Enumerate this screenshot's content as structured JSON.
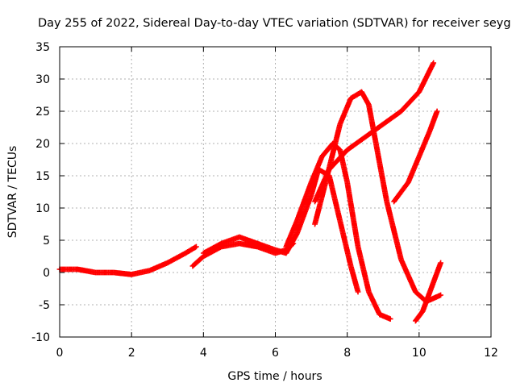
{
  "chart_data": {
    "type": "scatter",
    "title": "Day 255 of 2022, Sidereal Day-to-day VTEC variation (SDTVAR) for receiver seyg",
    "xlabel": "GPS time / hours",
    "ylabel": "SDTVAR / TECUs",
    "xlim": [
      0,
      12
    ],
    "ylim": [
      -10,
      35
    ],
    "xticks": [
      0,
      2,
      4,
      6,
      8,
      10,
      12
    ],
    "yticks": [
      -10,
      -5,
      0,
      5,
      10,
      15,
      20,
      25,
      30,
      35
    ],
    "grid": true,
    "legend": "none",
    "marker": "+",
    "color": "#ff0000",
    "series": [
      {
        "name": "trace-1",
        "x": [
          0,
          0.5,
          1,
          1.5,
          2,
          2.5,
          3,
          3.5,
          3.8
        ],
        "y": [
          0.5,
          0.5,
          0,
          0,
          -0.3,
          0.3,
          1.5,
          3,
          4
        ]
      },
      {
        "name": "trace-2",
        "x": [
          3.7,
          4,
          4.5,
          5,
          5.5,
          6,
          6.3,
          6.5
        ],
        "y": [
          1,
          2.5,
          4,
          4.5,
          4,
          3,
          3.5,
          4.5
        ]
      },
      {
        "name": "trace-3",
        "x": [
          4,
          4.5,
          5,
          5.5,
          6,
          6.3,
          6.6,
          7,
          7.2,
          7.5,
          7.8,
          8.1,
          8.3
        ],
        "y": [
          3,
          4.5,
          5.5,
          4.5,
          3.5,
          3,
          6,
          12,
          16,
          15,
          8,
          1,
          -3
        ]
      },
      {
        "name": "trace-4",
        "x": [
          6.3,
          6.6,
          7,
          7.3,
          7.6,
          7.8,
          8,
          8.3,
          8.6,
          8.9,
          9.2
        ],
        "y": [
          4,
          8,
          14,
          18,
          20,
          19,
          14,
          4,
          -3,
          -6.5,
          -7.2
        ]
      },
      {
        "name": "trace-5",
        "x": [
          7.1,
          7.4,
          7.8,
          8.1,
          8.4,
          8.6,
          8.8,
          9.1,
          9.5,
          9.9,
          10.2,
          10.6
        ],
        "y": [
          7.5,
          14,
          23,
          27,
          28,
          26,
          20,
          11,
          2,
          -3,
          -4.5,
          -3.5
        ]
      },
      {
        "name": "trace-6",
        "x": [
          7.1,
          7.5,
          8,
          8.5,
          9,
          9.5,
          10,
          10.4
        ],
        "y": [
          11,
          16,
          19,
          21,
          23,
          25,
          28,
          32.5
        ]
      },
      {
        "name": "trace-7",
        "x": [
          9.3,
          9.7,
          10,
          10.3,
          10.5
        ],
        "y": [
          11,
          14,
          18,
          22,
          25
        ]
      },
      {
        "name": "trace-8",
        "x": [
          9.9,
          10.1,
          10.3,
          10.6
        ],
        "y": [
          -7.5,
          -6,
          -3,
          1.5
        ]
      }
    ]
  }
}
